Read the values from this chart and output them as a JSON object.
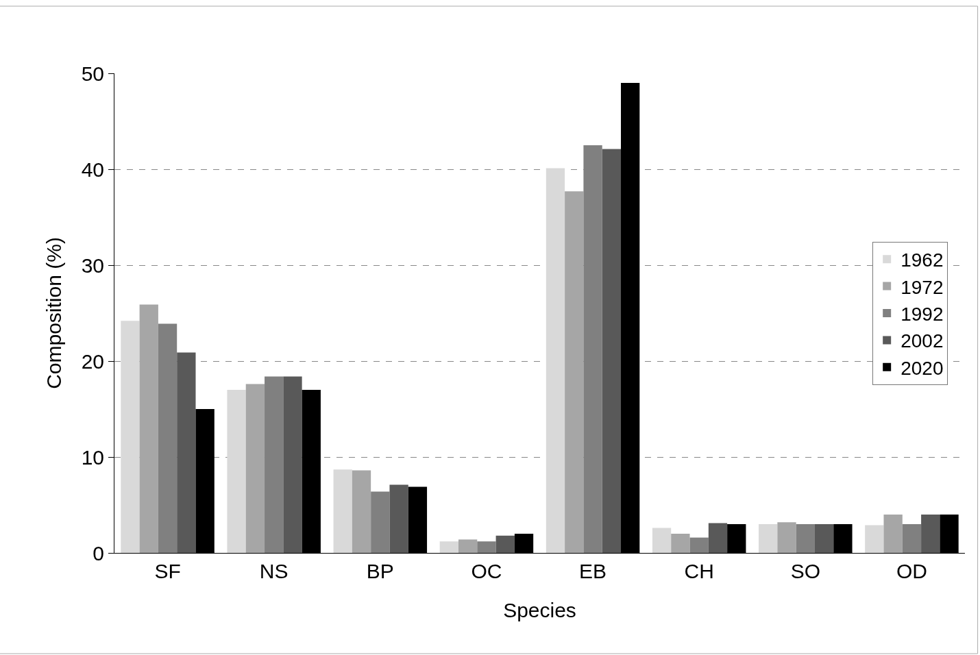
{
  "chart_data": {
    "type": "bar",
    "xlabel": "Species",
    "ylabel": "Composition (%)",
    "categories": [
      "SF",
      "NS",
      "BP",
      "OC",
      "EB",
      "CH",
      "SO",
      "OD"
    ],
    "series": [
      {
        "name": "1962",
        "color": "#d9d9d9",
        "values": [
          24.2,
          17.0,
          8.7,
          1.2,
          40.1,
          2.6,
          3.0,
          2.9
        ]
      },
      {
        "name": "1972",
        "color": "#a6a6a6",
        "values": [
          25.9,
          17.6,
          8.6,
          1.4,
          37.7,
          2.0,
          3.2,
          4.0
        ]
      },
      {
        "name": "1992",
        "color": "#808080",
        "values": [
          23.9,
          18.4,
          6.4,
          1.2,
          42.5,
          1.6,
          3.0,
          3.0
        ]
      },
      {
        "name": "2002",
        "color": "#595959",
        "values": [
          20.9,
          18.4,
          7.1,
          1.8,
          42.1,
          3.1,
          3.0,
          4.0
        ]
      },
      {
        "name": "2020",
        "color": "#000000",
        "values": [
          15.0,
          17.0,
          6.9,
          2.0,
          49.0,
          3.0,
          3.0,
          4.0
        ]
      }
    ],
    "ylim": [
      0,
      50
    ],
    "yticks": [
      0,
      10,
      20,
      30,
      40,
      50
    ],
    "grid": "y",
    "legend": "right"
  }
}
